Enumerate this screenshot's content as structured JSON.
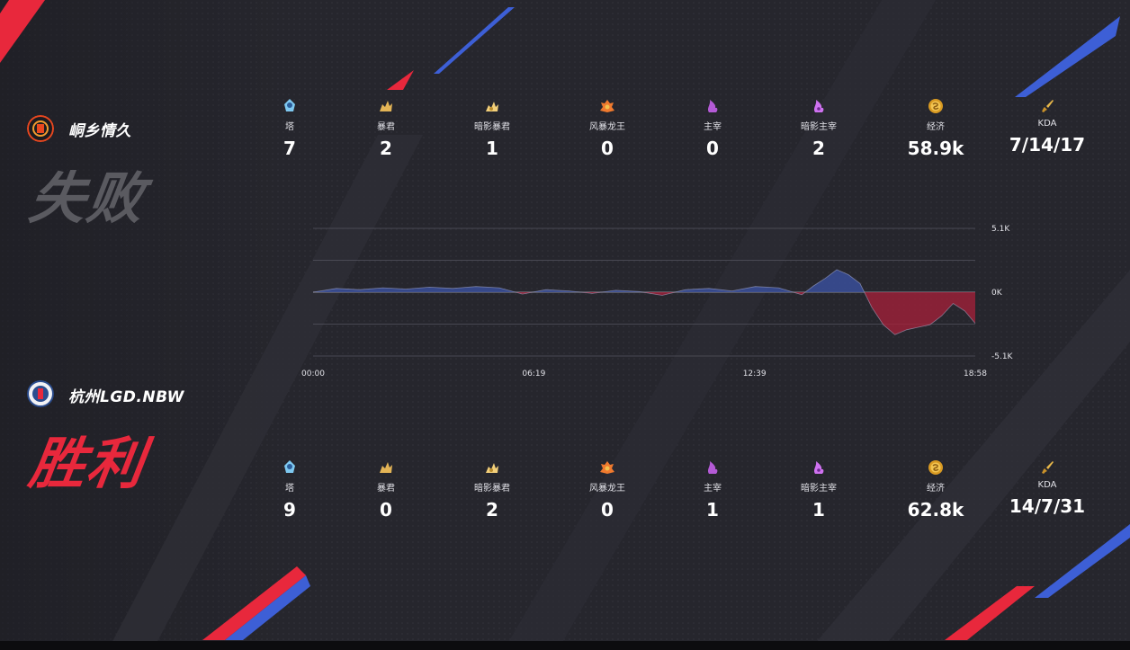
{
  "teams": [
    {
      "name": "峒乡情久",
      "result": "失败",
      "logo_color": "#e8471f",
      "stats": [
        {
          "icon": "tower-icon",
          "label": "塔",
          "value": "7"
        },
        {
          "icon": "tyrant-icon",
          "label": "暴君",
          "value": "2"
        },
        {
          "icon": "shadow-tyrant-icon",
          "label": "暗影暴君",
          "value": "1"
        },
        {
          "icon": "storm-dragon-icon",
          "label": "风暴龙王",
          "value": "0"
        },
        {
          "icon": "overlord-icon",
          "label": "主宰",
          "value": "0"
        },
        {
          "icon": "shadow-overlord-icon",
          "label": "暗影主宰",
          "value": "2"
        },
        {
          "icon": "gold-icon",
          "label": "经济",
          "value": "58.9k"
        },
        {
          "icon": "kda-sword-icon",
          "label": "KDA",
          "value": "7/14/17"
        }
      ]
    },
    {
      "name": "杭州LGD.NBW",
      "result": "胜利",
      "logo_color": "#2b4d8f",
      "stats": [
        {
          "icon": "tower-icon",
          "label": "塔",
          "value": "9"
        },
        {
          "icon": "tyrant-icon",
          "label": "暴君",
          "value": "0"
        },
        {
          "icon": "shadow-tyrant-icon",
          "label": "暗影暴君",
          "value": "2"
        },
        {
          "icon": "storm-dragon-icon",
          "label": "风暴龙王",
          "value": "0"
        },
        {
          "icon": "overlord-icon",
          "label": "主宰",
          "value": "1"
        },
        {
          "icon": "shadow-overlord-icon",
          "label": "暗影主宰",
          "value": "1"
        },
        {
          "icon": "gold-icon",
          "label": "经济",
          "value": "62.8k"
        },
        {
          "icon": "kda-sword-icon",
          "label": "KDA",
          "value": "14/7/31"
        }
      ]
    }
  ],
  "colors": {
    "positive": "#3a4f9a",
    "negative": "#a8203a",
    "lose_text": "#5a5a60",
    "win_text": "#e8283c"
  },
  "chart_data": {
    "type": "area",
    "x_ticks": [
      "00:00",
      "06:19",
      "12:39",
      "18:58"
    ],
    "y_ticks": [
      "5.1K",
      "0K",
      "-5.1K"
    ],
    "ylim": [
      -5100,
      5100
    ],
    "x_range_seconds": [
      0,
      1138
    ],
    "x_seconds": [
      0,
      40,
      80,
      120,
      160,
      200,
      240,
      280,
      320,
      360,
      400,
      440,
      480,
      520,
      560,
      600,
      640,
      680,
      720,
      760,
      800,
      840,
      860,
      880,
      900,
      920,
      940,
      960,
      980,
      1000,
      1020,
      1040,
      1060,
      1080,
      1100,
      1120,
      1138
    ],
    "values": [
      0,
      300,
      200,
      350,
      250,
      400,
      300,
      450,
      350,
      -150,
      200,
      100,
      -100,
      150,
      50,
      -250,
      200,
      300,
      100,
      450,
      350,
      -200,
      500,
      1100,
      1800,
      1400,
      700,
      -1200,
      -2600,
      -3400,
      -3000,
      -2800,
      -2600,
      -1900,
      -900,
      -1500,
      -2500
    ]
  }
}
